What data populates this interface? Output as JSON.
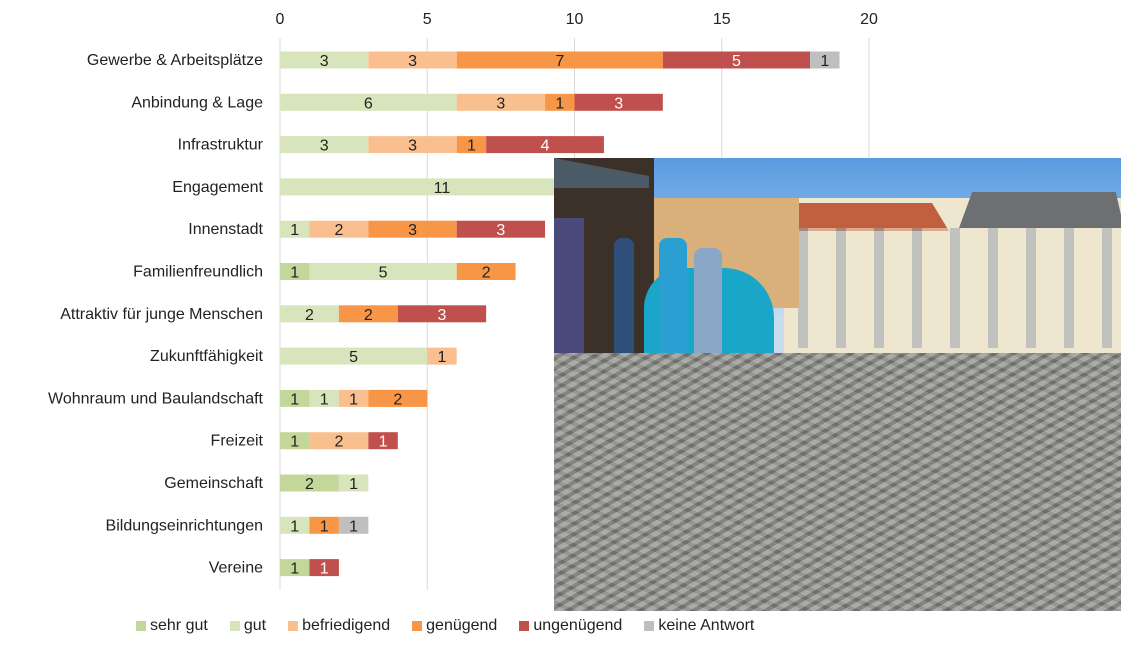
{
  "chart_data": {
    "type": "bar",
    "orientation": "horizontal",
    "stacked": true,
    "categories": [
      "Gewerbe & Arbeitsplätze",
      "Anbindung & Lage",
      "Infrastruktur",
      "Engagement",
      "Innenstadt",
      "Familienfreundlich",
      "Attraktiv für junge Menschen",
      "Zukunftfähigkeit",
      "Wohnraum und Baulandschaft",
      "Freizeit",
      "Gemeinschaft",
      "Bildungseinrichtungen",
      "Vereine"
    ],
    "series": [
      {
        "name": "sehr gut",
        "color": "#c4d79b",
        "values": [
          0,
          0,
          0,
          0,
          0,
          1,
          0,
          0,
          1,
          1,
          2,
          0,
          1
        ]
      },
      {
        "name": "gut",
        "color": "#d8e4bc",
        "values": [
          3,
          6,
          3,
          11,
          1,
          5,
          2,
          5,
          1,
          0,
          1,
          1,
          0
        ]
      },
      {
        "name": "befriedigend",
        "color": "#fabf8f",
        "values": [
          3,
          3,
          3,
          0,
          2,
          0,
          0,
          1,
          1,
          2,
          0,
          0,
          0
        ]
      },
      {
        "name": "genügend",
        "color": "#f79646",
        "values": [
          7,
          1,
          1,
          0,
          3,
          2,
          2,
          0,
          2,
          0,
          0,
          1,
          0
        ]
      },
      {
        "name": "ungenügend",
        "color": "#c0504d",
        "values": [
          5,
          3,
          4,
          0,
          3,
          0,
          3,
          0,
          0,
          1,
          0,
          0,
          1
        ]
      },
      {
        "name": "keine Antwort",
        "color": "#bfbfbf",
        "values": [
          1,
          0,
          0,
          0,
          0,
          0,
          0,
          0,
          0,
          0,
          0,
          1,
          0
        ]
      }
    ],
    "xlim": [
      0,
      20
    ],
    "xticks": [
      0,
      5,
      10,
      15,
      20
    ],
    "grid": true,
    "axis_position": "top",
    "legend": "bottom",
    "data_labels": true
  },
  "overlay_photo": "market square with cobblestones"
}
